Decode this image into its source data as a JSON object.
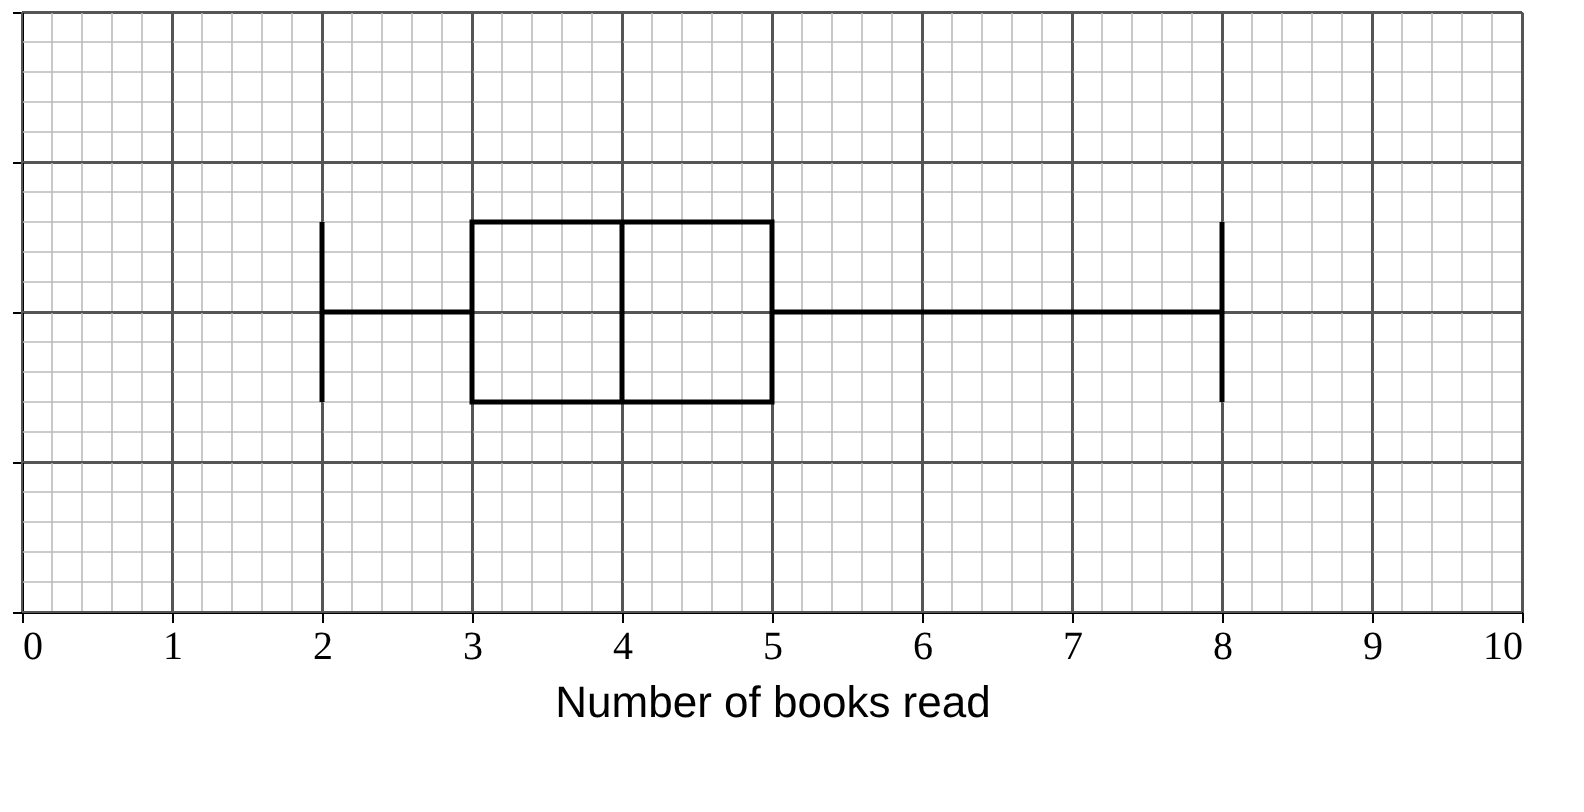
{
  "chart_data": {
    "type": "box",
    "orientation": "horizontal",
    "xlabel": "Number of books read",
    "categories": [
      null
    ],
    "boxes": [
      {
        "low": 2,
        "q1": 3,
        "median": 4,
        "q3": 5,
        "high": 8
      }
    ],
    "xlim": [
      0,
      10
    ],
    "xticks": [
      0,
      1,
      2,
      3,
      4,
      5,
      6,
      7,
      8,
      9,
      10
    ],
    "grid": true,
    "tick_labels": "x",
    "color": "#000000"
  }
}
